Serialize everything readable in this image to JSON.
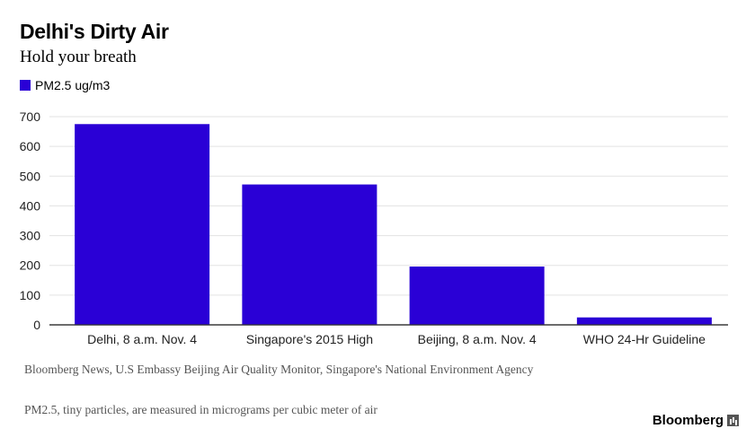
{
  "chart_data": {
    "type": "bar",
    "title": "Delhi's Dirty Air",
    "subtitle": "Hold your breath",
    "categories": [
      "Delhi, 8 a.m. Nov. 4",
      "Singapore's 2015 High",
      "Beijing, 8 a.m. Nov. 4",
      "WHO 24-Hr Guideline"
    ],
    "series": [
      {
        "name": "PM2.5 ug/m3",
        "values": [
          675,
          472,
          196,
          25
        ],
        "color": "#2a00d6"
      }
    ],
    "yticks": [
      0,
      100,
      200,
      300,
      400,
      500,
      600,
      700
    ],
    "ylim": [
      0,
      700
    ],
    "grid": true,
    "legend": "top-left"
  },
  "source": "Bloomberg News, U.S Embassy Beijing Air Quality Monitor, Singapore's National Environment Agency",
  "note": "PM2.5, tiny particles, are measured in micrograms per cubic meter of air",
  "brand": "Bloomberg"
}
